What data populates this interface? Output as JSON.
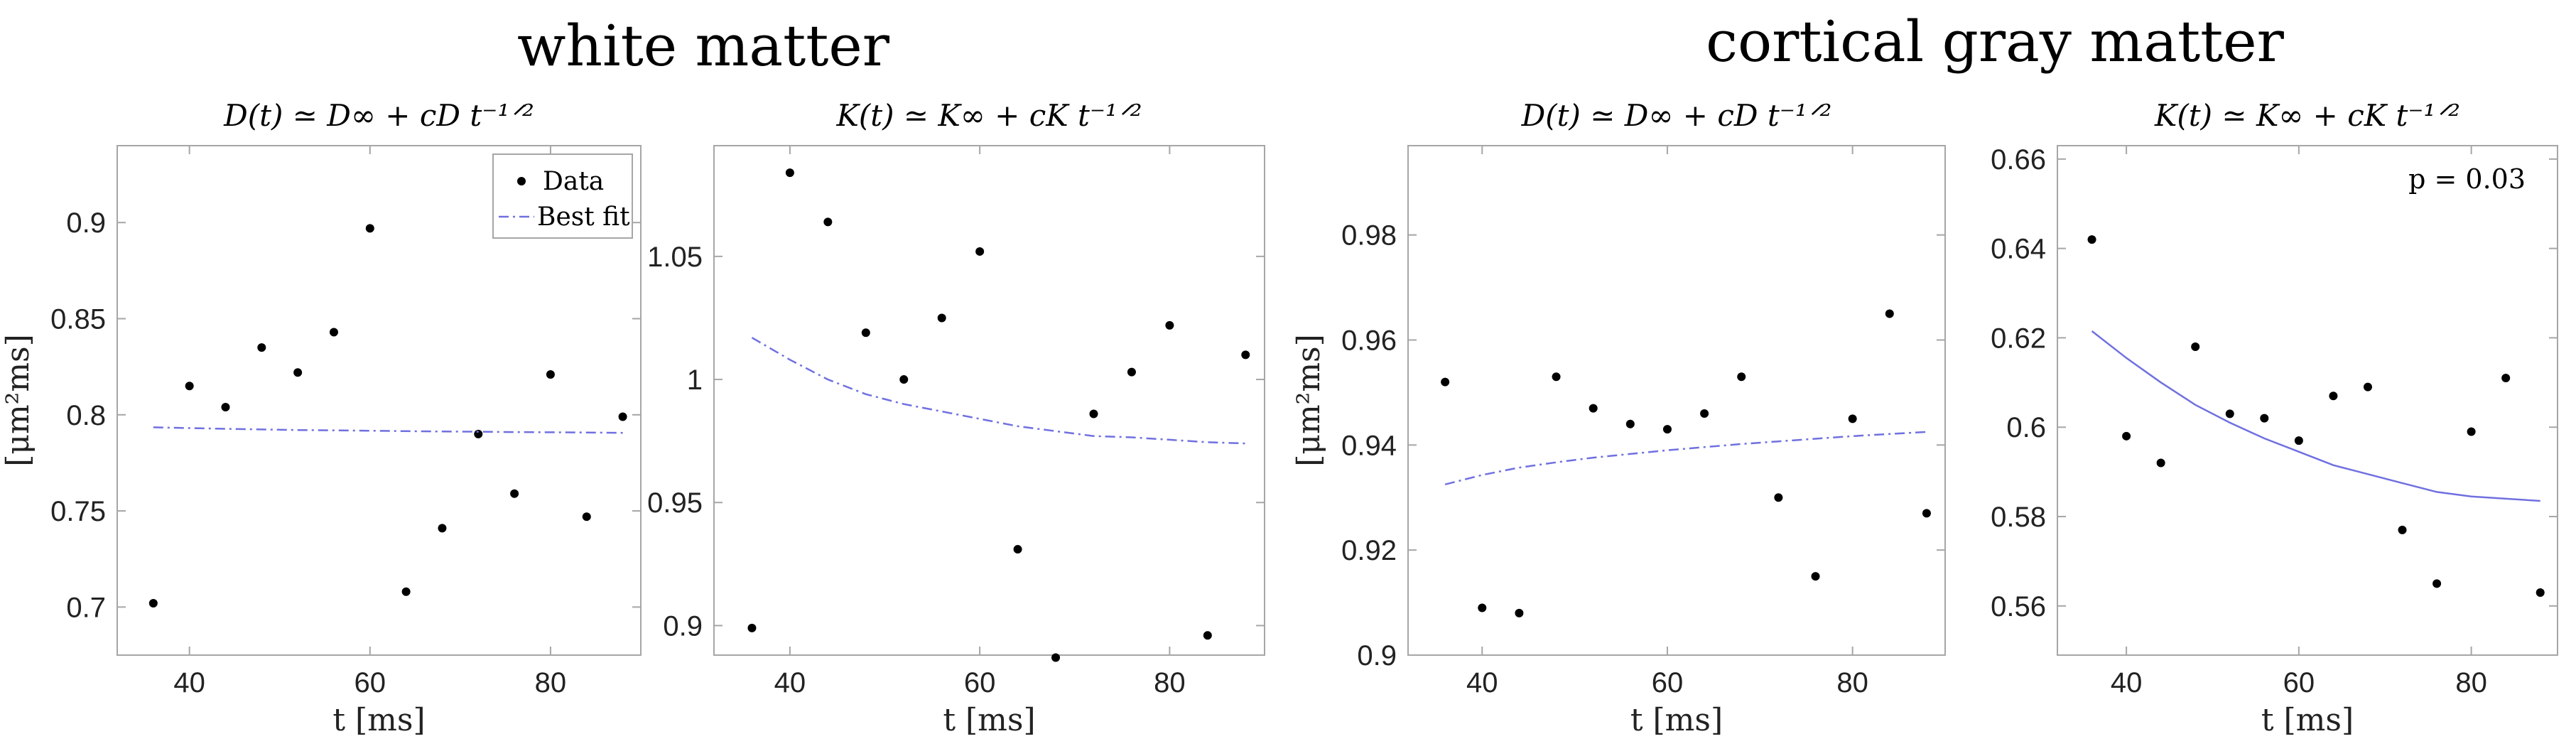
{
  "group_titles": [
    "white matter",
    "cortical gray matter"
  ],
  "chart_data": [
    {
      "type": "scatter",
      "group": "white matter",
      "title": "D(t) ≃ D∞ + cD t⁻¹ᐟ²",
      "xlabel": "t [ms]",
      "ylabel": "[μm²ms]",
      "xlim": [
        32,
        90
      ],
      "ylim": [
        0.675,
        0.94
      ],
      "xticks": [
        40,
        60,
        80
      ],
      "xtick_labels": [
        "40",
        "60",
        "80"
      ],
      "yticks": [
        0.7,
        0.75,
        0.8,
        0.85,
        0.9
      ],
      "ytick_labels": [
        "0.7",
        "0.75",
        "0.8",
        "0.85",
        "0.9"
      ],
      "legend": {
        "entries": [
          "Data",
          "Best fit"
        ],
        "position": "top-right"
      },
      "annotation": "",
      "series": [
        {
          "kind": "points",
          "x": [
            36,
            40,
            44,
            48,
            52,
            56,
            60,
            64,
            68,
            72,
            76,
            80,
            84,
            88
          ],
          "y": [
            0.702,
            0.815,
            0.804,
            0.835,
            0.822,
            0.843,
            0.897,
            0.708,
            0.741,
            0.79,
            0.759,
            0.821,
            0.747,
            0.799
          ]
        },
        {
          "kind": "line",
          "style": "dashdot",
          "color": "#7070e0",
          "x": [
            36,
            40,
            44,
            48,
            52,
            56,
            60,
            64,
            68,
            72,
            76,
            80,
            84,
            88
          ],
          "y": [
            0.7935,
            0.7931,
            0.7927,
            0.7924,
            0.7921,
            0.7919,
            0.7917,
            0.7915,
            0.7913,
            0.7912,
            0.791,
            0.7909,
            0.7908,
            0.7906
          ]
        }
      ]
    },
    {
      "type": "scatter",
      "group": "white matter",
      "title": "K(t) ≃ K∞ + cK t⁻¹ᐟ²",
      "xlabel": "t [ms]",
      "ylabel": "",
      "xlim": [
        32,
        90
      ],
      "ylim": [
        0.888,
        1.095
      ],
      "xticks": [
        40,
        60,
        80
      ],
      "xtick_labels": [
        "40",
        "60",
        "80"
      ],
      "yticks": [
        0.9,
        0.95,
        1.0,
        1.05
      ],
      "ytick_labels": [
        "0.9",
        "0.95",
        "1",
        "1.05"
      ],
      "annotation": "",
      "series": [
        {
          "kind": "points",
          "x": [
            36,
            40,
            44,
            48,
            52,
            56,
            60,
            64,
            68,
            72,
            76,
            80,
            84,
            88
          ],
          "y": [
            0.899,
            1.084,
            1.064,
            1.019,
            1.0,
            1.025,
            1.052,
            0.931,
            0.887,
            0.986,
            1.003,
            1.022,
            0.896,
            1.01
          ]
        },
        {
          "kind": "line",
          "style": "dashdot",
          "color": "#7070e0",
          "x": [
            36,
            40,
            44,
            48,
            52,
            56,
            60,
            64,
            68,
            72,
            76,
            80,
            84,
            88
          ],
          "y": [
            1.017,
            1.008,
            1.0,
            0.994,
            0.99,
            0.987,
            0.984,
            0.981,
            0.979,
            0.977,
            0.9765,
            0.9755,
            0.9745,
            0.974
          ]
        }
      ]
    },
    {
      "type": "scatter",
      "group": "cortical gray matter",
      "title": "D(t) ≃ D∞ + cD t⁻¹ᐟ²",
      "xlabel": "t [ms]",
      "ylabel": "[μm²ms]",
      "xlim": [
        32,
        90
      ],
      "ylim": [
        0.9,
        0.997
      ],
      "xticks": [
        40,
        60,
        80
      ],
      "xtick_labels": [
        "40",
        "60",
        "80"
      ],
      "yticks": [
        0.9,
        0.92,
        0.94,
        0.96,
        0.98
      ],
      "ytick_labels": [
        "0.9",
        "0.92",
        "0.94",
        "0.96",
        "0.98"
      ],
      "annotation": "",
      "series": [
        {
          "kind": "points",
          "x": [
            36,
            40,
            44,
            48,
            52,
            56,
            60,
            64,
            68,
            72,
            76,
            80,
            84,
            88
          ],
          "y": [
            0.952,
            0.909,
            0.908,
            0.953,
            0.947,
            0.944,
            0.943,
            0.946,
            0.953,
            0.93,
            0.915,
            0.945,
            0.965,
            0.927
          ]
        },
        {
          "kind": "line",
          "style": "dashdot",
          "color": "#7070e0",
          "x": [
            36,
            40,
            44,
            48,
            52,
            56,
            60,
            64,
            68,
            72,
            76,
            80,
            84,
            88
          ],
          "y": [
            0.9325,
            0.9343,
            0.9357,
            0.9367,
            0.9376,
            0.9383,
            0.939,
            0.9396,
            0.9402,
            0.9407,
            0.9412,
            0.9417,
            0.9421,
            0.9425
          ]
        }
      ]
    },
    {
      "type": "scatter",
      "group": "cortical gray matter",
      "title": "K(t) ≃ K∞ + cK t⁻¹ᐟ²",
      "xlabel": "t [ms]",
      "ylabel": "",
      "xlim": [
        32,
        90
      ],
      "ylim": [
        0.549,
        0.663
      ],
      "xticks": [
        40,
        60,
        80
      ],
      "xtick_labels": [
        "40",
        "60",
        "80"
      ],
      "yticks": [
        0.56,
        0.58,
        0.6,
        0.62,
        0.64,
        0.66
      ],
      "ytick_labels": [
        "0.56",
        "0.58",
        "0.6",
        "0.62",
        "0.64",
        "0.66"
      ],
      "annotation": "p  = 0.03",
      "series": [
        {
          "kind": "points",
          "x": [
            36,
            40,
            44,
            48,
            52,
            56,
            60,
            64,
            68,
            72,
            76,
            80,
            84,
            88
          ],
          "y": [
            0.642,
            0.598,
            0.592,
            0.618,
            0.603,
            0.602,
            0.597,
            0.607,
            0.609,
            0.577,
            0.565,
            0.599,
            0.611,
            0.563
          ]
        },
        {
          "kind": "line",
          "style": "solid",
          "color": "#7070e0",
          "x": [
            36,
            40,
            44,
            48,
            52,
            56,
            60,
            64,
            68,
            72,
            76,
            80,
            84,
            88
          ],
          "y": [
            0.6215,
            0.6155,
            0.61,
            0.605,
            0.601,
            0.5975,
            0.5945,
            0.5915,
            0.5895,
            0.5875,
            0.5855,
            0.5845,
            0.584,
            0.5835
          ]
        }
      ]
    }
  ]
}
